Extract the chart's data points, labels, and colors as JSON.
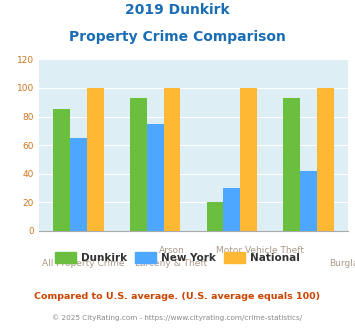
{
  "title_line1": "2019 Dunkirk",
  "title_line2": "Property Crime Comparison",
  "category_labels_top": [
    "",
    "Arson",
    "Motor Vehicle Theft",
    ""
  ],
  "category_labels_bot": [
    "All Property Crime",
    "Larceny & Theft",
    "",
    "Burglary"
  ],
  "dunkirk": [
    85,
    93,
    20,
    93
  ],
  "new_york": [
    65,
    75,
    30,
    42
  ],
  "national": [
    100,
    100,
    100,
    100
  ],
  "dunkirk_color": "#6abf3e",
  "new_york_color": "#4da6ff",
  "national_color": "#ffb833",
  "bg_color": "#deeef5",
  "title_color": "#1a6db5",
  "ylabel_max": 120,
  "yticks": [
    0,
    20,
    40,
    60,
    80,
    100,
    120
  ],
  "bar_width": 0.22,
  "legend_labels": [
    "Dunkirk",
    "New York",
    "National"
  ],
  "footnote1": "Compared to U.S. average. (U.S. average equals 100)",
  "footnote2": "© 2025 CityRating.com - https://www.cityrating.com/crime-statistics/",
  "footnote1_color": "#cc4400",
  "footnote2_color": "#888888",
  "label_color": "#aa9988"
}
